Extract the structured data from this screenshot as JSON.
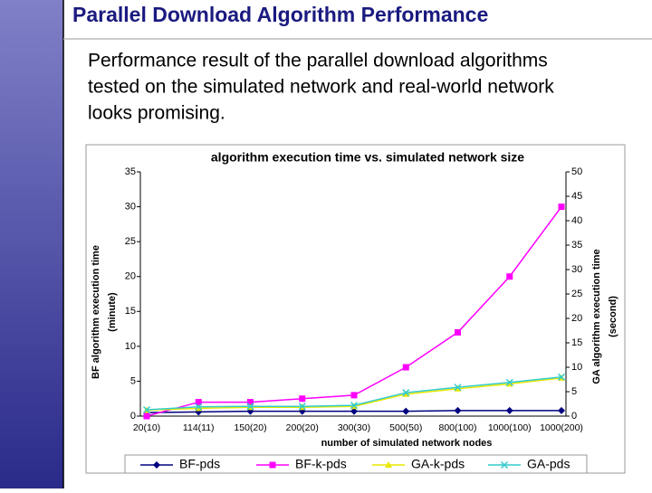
{
  "slide": {
    "title": "Parallel Download Algorithm Performance",
    "body": [
      "Performance result of the parallel download algorithms",
      "tested on the simulated network and real-world network",
      "looks promising."
    ]
  },
  "chart_data": {
    "type": "line",
    "title": "algorithm execution time vs. simulated network size",
    "xlabel": "number of simulated network nodes",
    "ylabel": [
      "BF algorithm execution time",
      "(minute)"
    ],
    "y2label": [
      "GA algorithm execution time",
      "(second)"
    ],
    "categories": [
      "20(10)",
      "114(11)",
      "150(20)",
      "200(20)",
      "300(30)",
      "500(50)",
      "800(100)",
      "1000(100)",
      "1000(200)"
    ],
    "ylim": [
      0,
      35
    ],
    "yticks": [
      0,
      5,
      10,
      15,
      20,
      25,
      30,
      35
    ],
    "y2lim": [
      0,
      50
    ],
    "y2ticks": [
      0,
      5,
      10,
      15,
      20,
      25,
      30,
      35,
      40,
      45,
      50
    ],
    "legend": "bottom",
    "series": [
      {
        "name": "BF-pds",
        "color": "#000080",
        "marker": "diamond",
        "values": [
          0.5,
          0.6,
          0.7,
          0.7,
          0.7,
          0.7,
          0.8,
          0.8,
          0.8
        ]
      },
      {
        "name": "BF-k-pds",
        "color": "#ff00ff",
        "marker": "square",
        "values": [
          0,
          2,
          2,
          2.5,
          3,
          7,
          12,
          20,
          30
        ]
      },
      {
        "name": "GA-k-pds",
        "color": "#e8e800",
        "marker": "triangle",
        "axis": "y2",
        "values": [
          1.2,
          1.6,
          1.8,
          1.8,
          2,
          4.5,
          5.6,
          6.6,
          7.8
        ]
      },
      {
        "name": "GA-pds",
        "color": "#33cccc",
        "marker": "x",
        "axis": "y2",
        "values": [
          1.3,
          1.9,
          2,
          2,
          2.2,
          4.8,
          5.9,
          6.9,
          8
        ]
      }
    ]
  }
}
